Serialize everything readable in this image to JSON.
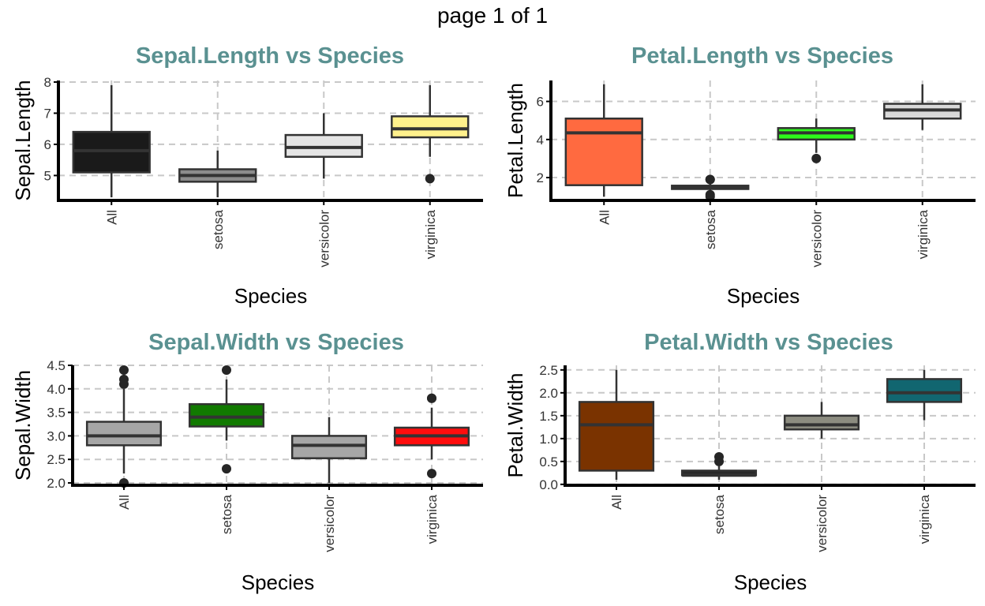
{
  "page": {
    "title": "page 1 of 1"
  },
  "chart_data": [
    {
      "type": "boxplot",
      "title": "Sepal.Length vs Species",
      "xlabel": "Species",
      "ylabel": "Sepal.Length",
      "categories": [
        "All",
        "setosa",
        "versicolor",
        "virginica"
      ],
      "ylim": [
        4.2,
        8.05
      ],
      "yticks": [
        5,
        6,
        7,
        8
      ],
      "grid": true,
      "boxes": [
        {
          "category": "All",
          "min": 4.3,
          "q1": 5.1,
          "median": 5.8,
          "q3": 6.4,
          "max": 7.9,
          "outliers": [],
          "fill": "#1a1a1a"
        },
        {
          "category": "setosa",
          "min": 4.3,
          "q1": 4.8,
          "median": 5.0,
          "q3": 5.2,
          "max": 5.8,
          "outliers": [],
          "fill": "#8c8c8c"
        },
        {
          "category": "versicolor",
          "min": 4.9,
          "q1": 5.6,
          "median": 5.9,
          "q3": 6.3,
          "max": 7.0,
          "outliers": [],
          "fill": "#e5e5e5"
        },
        {
          "category": "virginica",
          "min": 5.6,
          "q1": 6.225,
          "median": 6.5,
          "q3": 6.9,
          "max": 7.9,
          "outliers": [
            4.9
          ],
          "fill": "#fff18c"
        }
      ]
    },
    {
      "type": "boxplot",
      "title": "Petal.Length vs Species",
      "xlabel": "Species",
      "ylabel": "Petal.Length",
      "categories": [
        "All",
        "setosa",
        "versicolor",
        "virginica"
      ],
      "ylim": [
        0.8,
        7.1
      ],
      "yticks": [
        2,
        4,
        6
      ],
      "grid": true,
      "boxes": [
        {
          "category": "All",
          "min": 1.0,
          "q1": 1.6,
          "median": 4.35,
          "q3": 5.1,
          "max": 6.9,
          "outliers": [],
          "fill": "#ff6a40"
        },
        {
          "category": "setosa",
          "min": 1.2,
          "q1": 1.4,
          "median": 1.5,
          "q3": 1.575,
          "max": 1.7,
          "outliers": [
            1.0,
            1.1,
            1.9,
            1.9
          ],
          "fill": "#2a2a2a"
        },
        {
          "category": "versicolor",
          "min": 3.3,
          "q1": 4.0,
          "median": 4.35,
          "q3": 4.6,
          "max": 5.1,
          "outliers": [
            3.0
          ],
          "fill": "#2dfa1a"
        },
        {
          "category": "virginica",
          "min": 4.5,
          "q1": 5.1,
          "median": 5.55,
          "q3": 5.875,
          "max": 6.9,
          "outliers": [],
          "fill": "#d9d9d9"
        }
      ]
    },
    {
      "type": "boxplot",
      "title": "Sepal.Width vs Species",
      "xlabel": "Species",
      "ylabel": "Sepal.Width",
      "categories": [
        "All",
        "setosa",
        "versicolor",
        "virginica"
      ],
      "ylim": [
        1.95,
        4.5
      ],
      "yticks": [
        2.0,
        2.5,
        3.0,
        3.5,
        4.0,
        4.5
      ],
      "grid": true,
      "boxes": [
        {
          "category": "All",
          "min": 2.2,
          "q1": 2.8,
          "median": 3.0,
          "q3": 3.3,
          "max": 4.0,
          "outliers": [
            2.0,
            4.1,
            4.2,
            4.4
          ],
          "fill": "#a6a6a6"
        },
        {
          "category": "setosa",
          "min": 2.9,
          "q1": 3.2,
          "median": 3.4,
          "q3": 3.675,
          "max": 4.2,
          "outliers": [
            2.3,
            4.4
          ],
          "fill": "#117a00"
        },
        {
          "category": "versicolor",
          "min": 2.0,
          "q1": 2.525,
          "median": 2.8,
          "q3": 3.0,
          "max": 3.4,
          "outliers": [],
          "fill": "#a6a6a6"
        },
        {
          "category": "virginica",
          "min": 2.5,
          "q1": 2.8,
          "median": 3.0,
          "q3": 3.175,
          "max": 3.6,
          "outliers": [
            2.2,
            3.8,
            3.8
          ],
          "fill": "#ff0d0d"
        }
      ]
    },
    {
      "type": "boxplot",
      "title": "Petal.Width vs Species",
      "xlabel": "Species",
      "ylabel": "Petal.Width",
      "categories": [
        "All",
        "setosa",
        "versicolor",
        "virginica"
      ],
      "ylim": [
        -0.02,
        2.6
      ],
      "yticks": [
        0.0,
        0.5,
        1.0,
        1.5,
        2.0,
        2.5
      ],
      "grid": true,
      "boxes": [
        {
          "category": "All",
          "min": 0.1,
          "q1": 0.3,
          "median": 1.3,
          "q3": 1.8,
          "max": 2.5,
          "outliers": [],
          "fill": "#7a3300"
        },
        {
          "category": "setosa",
          "min": 0.1,
          "q1": 0.2,
          "median": 0.2,
          "q3": 0.3,
          "max": 0.4,
          "outliers": [
            0.5,
            0.6
          ],
          "fill": "#2a2a2a"
        },
        {
          "category": "versicolor",
          "min": 1.0,
          "q1": 1.2,
          "median": 1.3,
          "q3": 1.5,
          "max": 1.8,
          "outliers": [],
          "fill": "#8c8c80"
        },
        {
          "category": "virginica",
          "min": 1.4,
          "q1": 1.8,
          "median": 2.0,
          "q3": 2.3,
          "max": 2.5,
          "outliers": [],
          "fill": "#116670"
        }
      ]
    }
  ]
}
